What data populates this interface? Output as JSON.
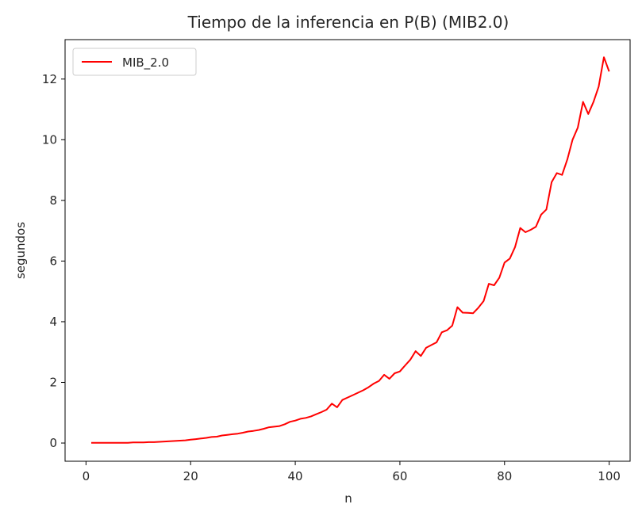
{
  "chart_data": {
    "type": "line",
    "title": "Tiempo de la inferencia en P(B) (MIB2.0)",
    "xlabel": "n",
    "ylabel": "segundos",
    "xlim": [
      -4,
      104
    ],
    "ylim": [
      -0.6,
      13.3
    ],
    "xticks": [
      0,
      20,
      40,
      60,
      80,
      100
    ],
    "yticks": [
      0,
      2,
      4,
      6,
      8,
      10,
      12
    ],
    "grid": false,
    "legend": {
      "position": "top-left"
    },
    "series": [
      {
        "name": "MIB_2.0",
        "color": "#ff0000",
        "x": [
          1,
          2,
          3,
          4,
          5,
          6,
          7,
          8,
          9,
          10,
          11,
          12,
          13,
          14,
          15,
          16,
          17,
          18,
          19,
          20,
          21,
          22,
          23,
          24,
          25,
          26,
          27,
          28,
          29,
          30,
          31,
          32,
          33,
          34,
          35,
          36,
          37,
          38,
          39,
          40,
          41,
          42,
          43,
          44,
          45,
          46,
          47,
          48,
          49,
          50,
          51,
          52,
          53,
          54,
          55,
          56,
          57,
          58,
          59,
          60,
          61,
          62,
          63,
          64,
          65,
          66,
          67,
          68,
          69,
          70,
          71,
          72,
          73,
          74,
          75,
          76,
          77,
          78,
          79,
          80,
          81,
          82,
          83,
          84,
          85,
          86,
          87,
          88,
          89,
          90,
          91,
          92,
          93,
          94,
          95,
          96,
          97,
          98,
          99,
          100
        ],
        "y": [
          0.01,
          0.01,
          0.01,
          0.01,
          0.01,
          0.01,
          0.01,
          0.01,
          0.02,
          0.02,
          0.02,
          0.03,
          0.03,
          0.04,
          0.05,
          0.06,
          0.07,
          0.08,
          0.09,
          0.11,
          0.13,
          0.15,
          0.17,
          0.2,
          0.21,
          0.25,
          0.27,
          0.29,
          0.31,
          0.34,
          0.38,
          0.4,
          0.43,
          0.47,
          0.52,
          0.54,
          0.56,
          0.62,
          0.7,
          0.74,
          0.8,
          0.83,
          0.88,
          0.95,
          1.02,
          1.1,
          1.3,
          1.18,
          1.42,
          1.5,
          1.58,
          1.66,
          1.74,
          1.84,
          1.96,
          2.05,
          2.25,
          2.12,
          2.3,
          2.36,
          2.56,
          2.75,
          3.03,
          2.87,
          3.14,
          3.23,
          3.32,
          3.65,
          3.72,
          3.87,
          4.48,
          4.3,
          4.29,
          4.28,
          4.46,
          4.68,
          5.25,
          5.2,
          5.45,
          5.95,
          6.08,
          6.46,
          7.09,
          6.95,
          7.03,
          7.13,
          7.53,
          7.7,
          8.6,
          8.9,
          8.84,
          9.35,
          10.0,
          10.4,
          11.25,
          10.85,
          11.25,
          11.75,
          12.72,
          12.25
        ]
      }
    ]
  }
}
